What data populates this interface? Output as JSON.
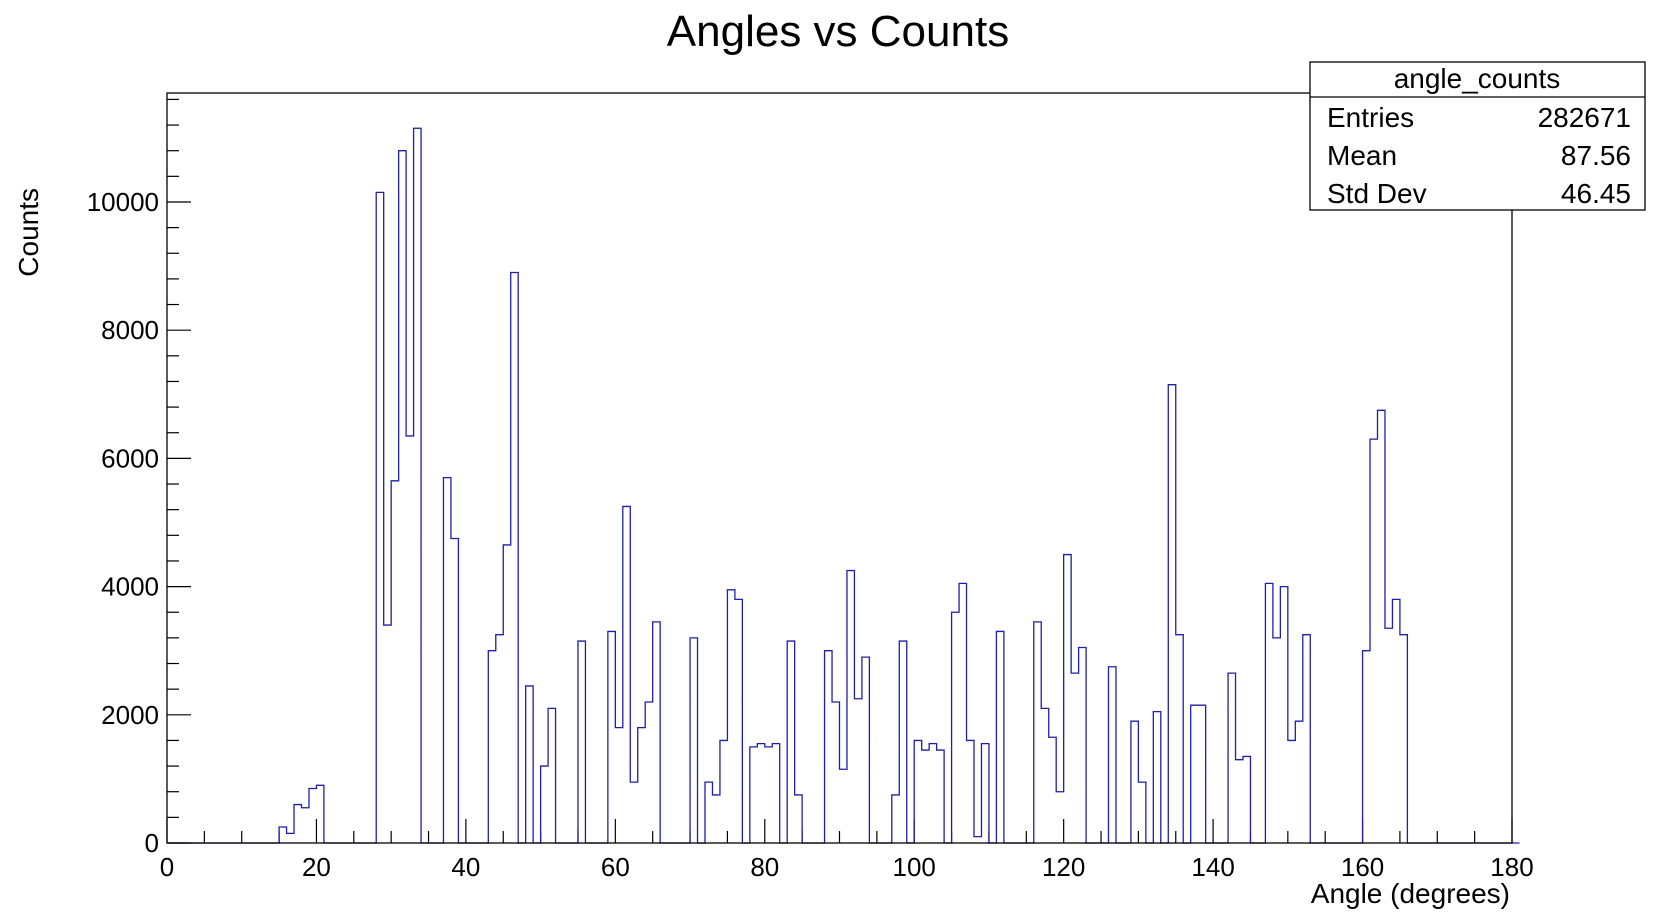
{
  "chart_data": {
    "type": "bar",
    "title": "Angles vs Counts",
    "xlabel": "Angle (degrees)",
    "ylabel": "Counts",
    "xlim": [
      0,
      180
    ],
    "ylim": [
      0,
      11700
    ],
    "grid": false,
    "legend": "none",
    "xticks": [
      "0",
      "20",
      "40",
      "60",
      "80",
      "100",
      "120",
      "140",
      "160",
      "180"
    ],
    "yticks": [
      "0",
      "2000",
      "4000",
      "6000",
      "8000",
      "10000"
    ],
    "bin_width": 1,
    "bin_edges_start": 0,
    "values": [
      0,
      0,
      0,
      0,
      0,
      0,
      0,
      0,
      0,
      0,
      0,
      0,
      0,
      0,
      0,
      250,
      150,
      600,
      550,
      850,
      900,
      0,
      0,
      0,
      0,
      0,
      0,
      0,
      10150,
      3400,
      5650,
      10800,
      6350,
      11150,
      0,
      0,
      0,
      5700,
      4750,
      0,
      0,
      0,
      0,
      3000,
      3250,
      4650,
      8900,
      0,
      2450,
      0,
      1200,
      2100,
      0,
      0,
      0,
      3150,
      0,
      0,
      0,
      3300,
      1800,
      5250,
      950,
      1800,
      2200,
      3450,
      0,
      0,
      0,
      0,
      3200,
      0,
      950,
      750,
      1600,
      3950,
      3800,
      0,
      1500,
      1550,
      1500,
      1550,
      0,
      3150,
      750,
      0,
      0,
      0,
      3000,
      2200,
      1150,
      4250,
      2250,
      2900,
      0,
      0,
      0,
      750,
      3150,
      0,
      1600,
      1450,
      1550,
      1450,
      0,
      3600,
      4050,
      1600,
      100,
      1550,
      0,
      3300,
      0,
      0,
      0,
      0,
      3450,
      2100,
      1650,
      800,
      4500,
      2650,
      3050,
      0,
      0,
      0,
      2750,
      0,
      0,
      1900,
      950,
      0,
      2050,
      0,
      7150,
      3250,
      0,
      2150,
      2150,
      0,
      0,
      0,
      2650,
      1300,
      1350,
      0,
      0,
      4050,
      3200,
      4000,
      1600,
      1900,
      3250,
      0,
      0,
      0,
      0,
      0,
      0,
      0,
      3000,
      6300,
      6750,
      3350,
      3800,
      3250,
      0,
      0,
      0,
      0,
      0,
      0,
      0,
      0,
      0,
      0,
      0,
      0,
      0,
      0,
      0
    ],
    "line_color": "#1f1fa8",
    "stats_box": {
      "title": "angle_counts",
      "rows": [
        {
          "label": "Entries",
          "value": "282671"
        },
        {
          "label": "Mean",
          "value": "87.56"
        },
        {
          "label": "Std Dev",
          "value": "46.45"
        }
      ]
    }
  }
}
